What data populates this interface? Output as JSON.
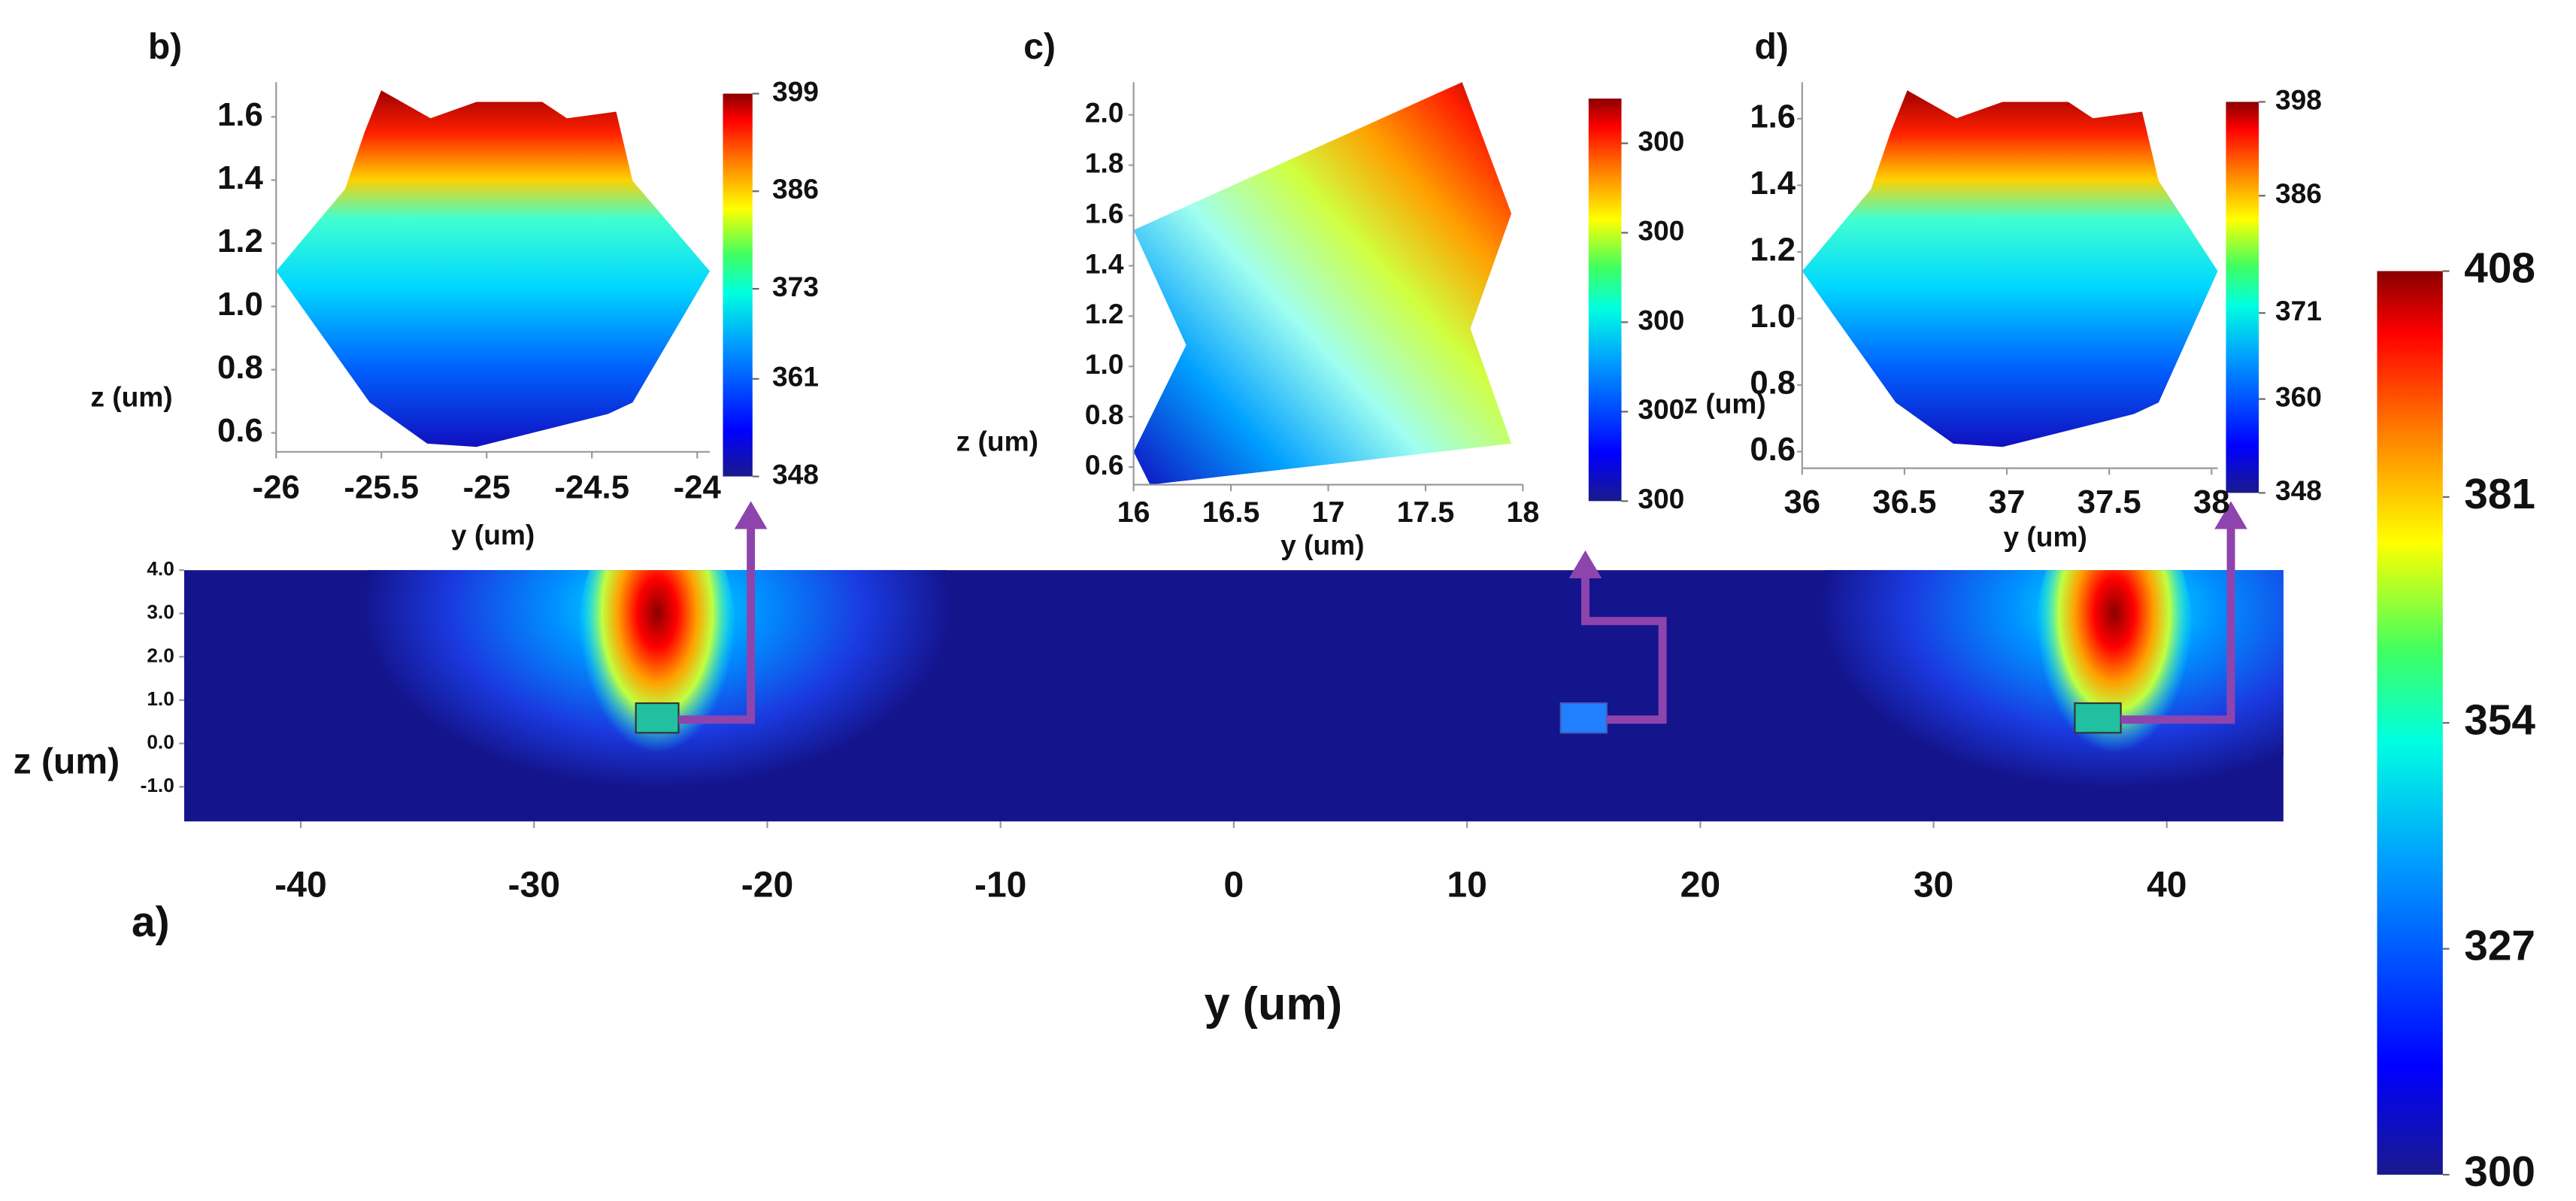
{
  "chart_data": [
    {
      "type": "heatmap",
      "title": "a)",
      "xlabel": "y (um)",
      "ylabel": "z (um)",
      "xlim": [
        -45,
        45
      ],
      "xticks": [
        -40,
        -30,
        -20,
        -10,
        0,
        10,
        20,
        30,
        40
      ],
      "ylim": [
        -1.8,
        4.0
      ],
      "yticks": [
        {
          "value": 4.0,
          "label": "4.0"
        },
        {
          "value": 3.0,
          "label": "3.0"
        },
        {
          "value": 2.0,
          "label": "2.0"
        },
        {
          "value": 1.0,
          "label": "1.0"
        },
        {
          "value": 0.0,
          "label": "0.0"
        },
        {
          "value": -1.0,
          "label": "-1.0"
        }
      ],
      "clim": [
        300,
        408
      ],
      "cticks": [
        408,
        381,
        354,
        327,
        300
      ]
    },
    {
      "type": "heatmap",
      "title": "b)",
      "xlabel": "y (um)",
      "ylabel": "z (um)",
      "xlim": [
        -26,
        -23.94
      ],
      "xticks": [
        -26,
        -25.5,
        -25,
        -24.5,
        -24
      ],
      "ylim": [
        0.54,
        1.71
      ],
      "yticks": [
        1.6,
        1.4,
        1.2,
        {
          "value": 1.0,
          "label": "1.0"
        },
        0.8,
        0.6
      ],
      "clim": [
        348,
        399
      ],
      "cticks": [
        399,
        386,
        373,
        361,
        348
      ]
    },
    {
      "type": "heatmap",
      "title": "c)",
      "xlabel": "y (um)",
      "ylabel": "z (um)",
      "xlim": [
        16,
        18
      ],
      "xticks": [
        16,
        16.5,
        17,
        17.5,
        18
      ],
      "ylim": [
        0.53,
        2.13
      ],
      "yticks": [
        {
          "value": 2.0,
          "label": "2.0"
        },
        1.8,
        1.6,
        1.4,
        1.2,
        {
          "value": 1.0,
          "label": "1.0"
        },
        0.8,
        0.6
      ],
      "clim": [
        300,
        300.45
      ],
      "cticks": [
        {
          "value": 300.4,
          "label": "300"
        },
        {
          "value": 300.3,
          "label": "300"
        },
        {
          "value": 300.2,
          "label": "300"
        },
        {
          "value": 300.1,
          "label": "300"
        },
        {
          "value": 300.0,
          "label": "300"
        }
      ]
    },
    {
      "type": "heatmap",
      "title": "d)",
      "xlabel": "y (um)",
      "ylabel": "z (um)",
      "xlim": [
        36,
        38.03
      ],
      "xticks": [
        36,
        36.5,
        37,
        37.5,
        38
      ],
      "ylim": [
        0.55,
        1.71
      ],
      "yticks": [
        1.6,
        1.4,
        1.2,
        {
          "value": 1.0,
          "label": "1.0"
        },
        0.8,
        0.6
      ],
      "clim": [
        348,
        398
      ],
      "cticks": [
        398,
        386,
        371,
        360,
        348
      ]
    }
  ]
}
